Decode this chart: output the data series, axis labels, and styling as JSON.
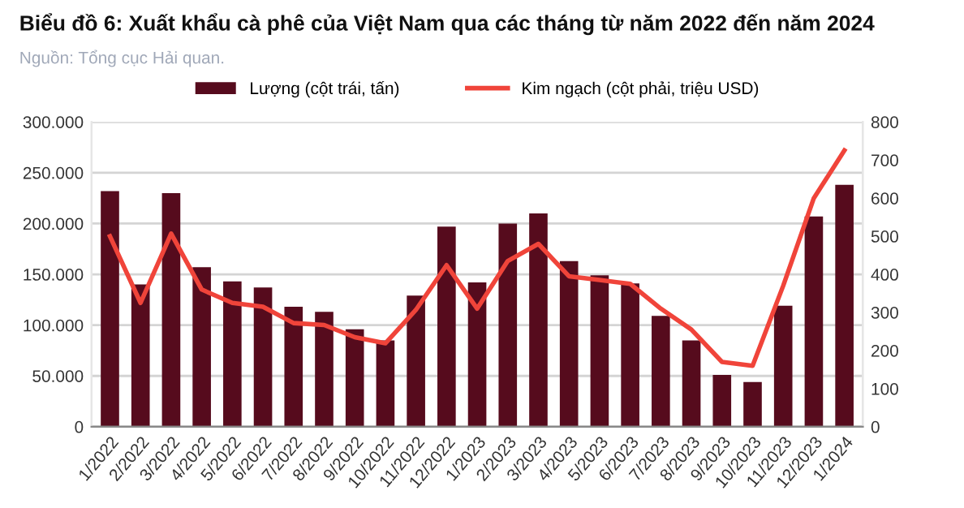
{
  "chart_data": {
    "type": "bar",
    "title": "Biểu đồ 6: Xuất khẩu cà phê của Việt Nam qua các tháng từ năm 2022 đến năm 2024",
    "annotations": [
      "Nguồn: Tổng cục Hải quan."
    ],
    "categories": [
      "1/2022",
      "2/2022",
      "3/2022",
      "4/2022",
      "5/2022",
      "6/2022",
      "7/2022",
      "8/2022",
      "9/2022",
      "10/2022",
      "11/2022",
      "12/2022",
      "1/2023",
      "2/2023",
      "3/2023",
      "4/2023",
      "5/2023",
      "6/2023",
      "7/2023",
      "8/2023",
      "9/2023",
      "10/2023",
      "11/2023",
      "12/2023",
      "1/2024"
    ],
    "series": [
      {
        "name": "Lượng (cột trái, tấn)",
        "color": "#560b1d",
        "values": [
          232000,
          140000,
          230000,
          157000,
          143000,
          137000,
          118000,
          113000,
          96000,
          85000,
          129000,
          197000,
          142000,
          200000,
          210000,
          163000,
          149000,
          141000,
          109000,
          85000,
          51000,
          44000,
          119000,
          207000,
          238000
        ]
      },
      {
        "name": "Kim ngạch (cột phải, triệu USD)",
        "type": "line",
        "axis": "y2",
        "color": "#f0443a",
        "values": [
          500,
          325,
          507,
          360,
          325,
          315,
          272,
          267,
          235,
          219,
          307,
          424,
          310,
          435,
          480,
          395,
          385,
          375,
          310,
          255,
          170,
          160,
          370,
          600,
          725
        ]
      }
    ],
    "ylim": [
      0,
      300000
    ],
    "yticks": [
      {
        "value": 0,
        "label": "0"
      },
      {
        "value": 50000,
        "label": "50.000"
      },
      {
        "value": 100000,
        "label": "100.000"
      },
      {
        "value": 150000,
        "label": "150.000"
      },
      {
        "value": 200000,
        "label": "200.000"
      },
      {
        "value": 250000,
        "label": "250.000"
      },
      {
        "value": 300000,
        "label": "300.000"
      }
    ],
    "y2lim": [
      0,
      800
    ],
    "y2ticks": [
      0,
      100,
      200,
      300,
      400,
      500,
      600,
      700,
      800
    ],
    "grid": "y",
    "legend": "top",
    "marker": "none",
    "line_style": "solid"
  }
}
